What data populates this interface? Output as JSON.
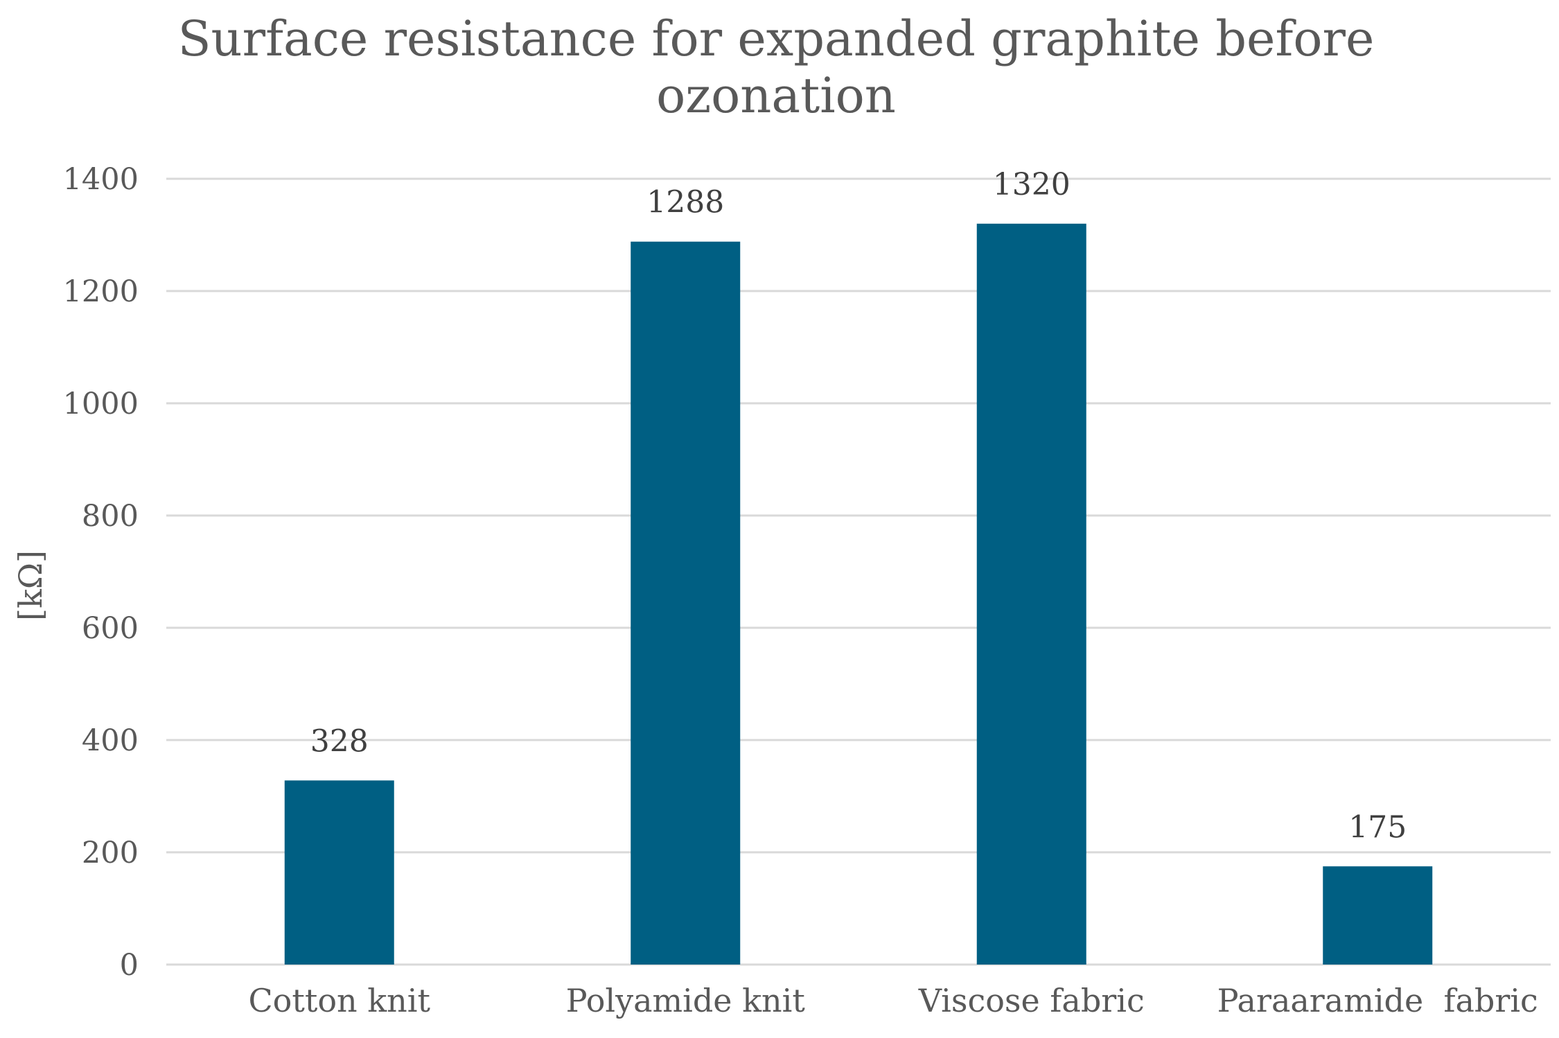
{
  "chart_data": {
    "type": "bar",
    "title_lines": [
      "Surface resistance for expanded graphite before",
      "ozonation"
    ],
    "title": "Surface resistance for expanded graphite before ozonation",
    "xlabel": "",
    "ylabel": "[kΩ]",
    "categories": [
      "Cotton knit",
      "Polyamide knit",
      "Viscose fabric",
      "Paraaramide  fabric"
    ],
    "values": [
      328,
      1288,
      1320,
      175
    ],
    "data_labels": [
      "328",
      "1288",
      "1320",
      "175"
    ],
    "ylim": [
      0,
      1400
    ],
    "yticks": [
      0,
      200,
      400,
      600,
      800,
      1000,
      1200,
      1400
    ],
    "ytick_labels": [
      "0",
      "200",
      "400",
      "600",
      "800",
      "1000",
      "1200",
      "1400"
    ],
    "grid": true,
    "legend": "none",
    "colors": {
      "bar": "#005f83",
      "grid": "#d9d9d9",
      "axis": "#d9d9d9",
      "text": "#595959",
      "data_label": "#404040"
    }
  }
}
